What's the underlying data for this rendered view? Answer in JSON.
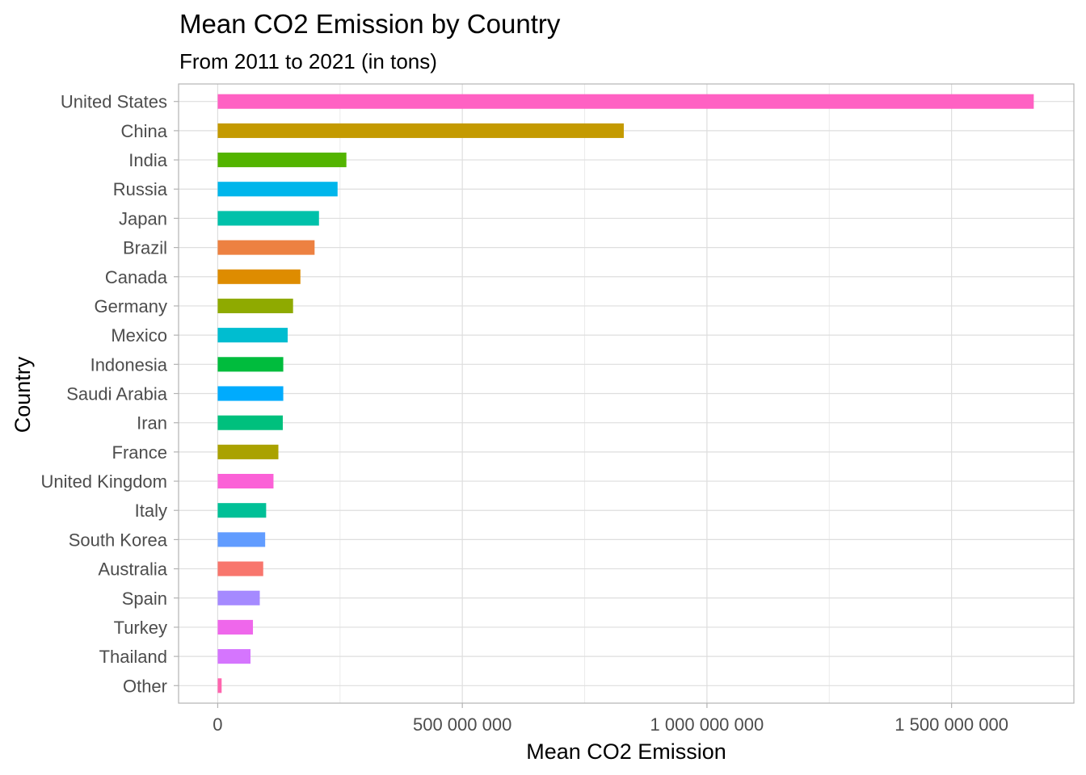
{
  "chart_data": {
    "type": "bar",
    "orientation": "horizontal",
    "title": "Mean CO2 Emission by Country",
    "subtitle": "From 2011 to 2021 (in tons)",
    "xlabel": "Mean CO2 Emission",
    "ylabel": "Country",
    "xlim": [
      -80000000,
      1750000000
    ],
    "x_ticks": [
      {
        "value": 0,
        "label": "0"
      },
      {
        "value": 500000000,
        "label": "500 000 000"
      },
      {
        "value": 1000000000,
        "label": "1 000 000 000"
      },
      {
        "value": 1500000000,
        "label": "1 500 000 000"
      }
    ],
    "x_minor_ticks": [
      250000000,
      750000000,
      1250000000
    ],
    "grid": true,
    "legend": "none",
    "categories": [
      "United States",
      "China",
      "India",
      "Russia",
      "Japan",
      "Brazil",
      "Canada",
      "Germany",
      "Mexico",
      "Indonesia",
      "Saudi Arabia",
      "Iran",
      "France",
      "United Kingdom",
      "Italy",
      "South Korea",
      "Australia",
      "Spain",
      "Turkey",
      "Thailand",
      "Other"
    ],
    "values": [
      1668000000,
      830000000,
      263000000,
      245000000,
      207000000,
      198000000,
      169000000,
      154000000,
      143000000,
      134000000,
      134000000,
      133000000,
      124000000,
      114000000,
      99000000,
      97000000,
      93000000,
      86000000,
      72000000,
      67000000,
      8000000
    ],
    "colors": [
      "#FF61C3",
      "#C49A00",
      "#53B400",
      "#00B6EB",
      "#00C1AA",
      "#ED8141",
      "#DE8C00",
      "#8FAA00",
      "#00BDD0",
      "#00BC3D",
      "#00ABFD",
      "#00C07D",
      "#AAA200",
      "#FB61D7",
      "#00C097",
      "#619CFF",
      "#F8766D",
      "#A58AFF",
      "#EF67EB",
      "#D575FE",
      "#FF65AE"
    ]
  }
}
